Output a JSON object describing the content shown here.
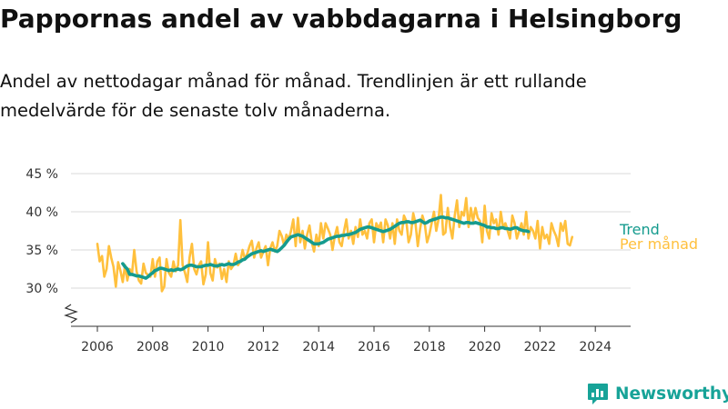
{
  "title": "Pappornas andel av vabbdagarna i Helsingborg",
  "subtitle": "Andel av nettodagar månad för månad. Trendlinjen är ett rullande medelvärde för de senaste tolv månaderna.",
  "brand": {
    "name": "Newsworthy",
    "color": "#17a398",
    "icon": "newsworthy-logo-icon"
  },
  "colors": {
    "monthly": "#ffc03d",
    "trend": "#159b8e",
    "grid": "#d9d9d9",
    "axis": "#333333"
  },
  "chart_data": {
    "type": "line",
    "title": "Pappornas andel av vabbdagarna i Helsingborg",
    "xlabel": "",
    "ylabel": "",
    "ylim": [
      25,
      45
    ],
    "y_ticks": [
      30,
      35,
      40,
      45
    ],
    "y_tick_labels": [
      "30 %",
      "35 %",
      "40 %",
      "45 %"
    ],
    "x_ticks": [
      2006,
      2008,
      2010,
      2012,
      2014,
      2016,
      2018,
      2020,
      2022,
      2024
    ],
    "x_tick_labels": [
      "2006",
      "2008",
      "2010",
      "2012",
      "2014",
      "2016",
      "2018",
      "2020",
      "2022",
      "2024"
    ],
    "xlim": [
      2005.9,
      2024.4
    ],
    "axis_break": true,
    "grid": true,
    "legend": "inline-right",
    "series": [
      {
        "name": "Per månad",
        "key": "monthly",
        "start": 2006.0,
        "step": 0.08333,
        "values": [
          35.8,
          33.5,
          34.2,
          31.5,
          32.5,
          35.5,
          34.0,
          32.8,
          30.2,
          33.4,
          32.3,
          30.8,
          33.0,
          31.0,
          32.5,
          31.8,
          35.0,
          32.2,
          31.0,
          30.6,
          33.2,
          32.0,
          31.7,
          31.5,
          33.8,
          31.5,
          33.5,
          34.0,
          29.6,
          30.2,
          33.8,
          32.0,
          31.5,
          33.5,
          32.2,
          33.0,
          38.9,
          33.0,
          32.0,
          30.8,
          34.0,
          35.8,
          32.5,
          31.8,
          33.0,
          33.5,
          30.5,
          31.8,
          36.0,
          32.0,
          31.0,
          33.8,
          32.7,
          33.2,
          31.2,
          32.5,
          30.8,
          33.5,
          32.5,
          33.0,
          34.5,
          33.0,
          33.5,
          35.0,
          33.8,
          34.5,
          35.5,
          36.2,
          34.0,
          35.2,
          36.0,
          34.0,
          34.8,
          35.5,
          33.0,
          35.2,
          36.0,
          34.8,
          35.5,
          37.5,
          36.8,
          35.6,
          37.0,
          36.4,
          37.5,
          39.0,
          35.5,
          39.2,
          36.0,
          37.5,
          35.2,
          37.0,
          38.2,
          36.0,
          34.8,
          37.0,
          35.5,
          38.5,
          36.5,
          38.5,
          37.8,
          37.0,
          35.0,
          36.8,
          38.0,
          36.0,
          35.5,
          37.5,
          39.0,
          36.5,
          37.5,
          35.8,
          38.0,
          36.7,
          39.0,
          37.0,
          37.5,
          36.5,
          38.5,
          39.0,
          36.0,
          38.5,
          37.8,
          38.6,
          36.0,
          39.0,
          38.2,
          36.5,
          38.5,
          35.8,
          39.0,
          37.5,
          37.0,
          39.5,
          38.8,
          36.0,
          37.0,
          39.8,
          38.5,
          35.5,
          37.8,
          39.5,
          38.5,
          36.0,
          37.0,
          38.5,
          40.0,
          37.5,
          39.0,
          42.2,
          37.0,
          37.3,
          40.5,
          38.0,
          36.5,
          39.5,
          41.5,
          38.0,
          40.0,
          39.5,
          41.8,
          38.0,
          40.5,
          38.8,
          40.5,
          39.2,
          38.8,
          36.0,
          40.8,
          37.5,
          36.5,
          39.8,
          38.5,
          39.0,
          37.0,
          40.0,
          38.0,
          38.5,
          37.5,
          36.5,
          39.5,
          38.5,
          36.5,
          37.5,
          38.5,
          37.0,
          40.0,
          36.5,
          38.0,
          37.5,
          36.5,
          38.8,
          35.2,
          38.0,
          36.5,
          37.0,
          35.8,
          38.5,
          37.5,
          36.8,
          35.5,
          38.5,
          37.5,
          38.8,
          35.8,
          35.6,
          36.7
        ]
      },
      {
        "name": "Trend",
        "key": "trend",
        "start": 2006.917,
        "step": 0.08333,
        "values": [
          33.2,
          32.8,
          32.5,
          31.8,
          31.8,
          31.7,
          31.6,
          31.6,
          31.5,
          31.4,
          31.3,
          31.5,
          31.8,
          32.0,
          32.3,
          32.4,
          32.6,
          32.6,
          32.5,
          32.4,
          32.3,
          32.4,
          32.3,
          32.4,
          32.5,
          32.4,
          32.5,
          32.7,
          32.9,
          33.0,
          33.0,
          32.9,
          32.8,
          32.8,
          32.8,
          32.9,
          33.0,
          33.0,
          33.1,
          33.0,
          32.9,
          32.9,
          33.0,
          33.1,
          33.0,
          33.1,
          33.2,
          33.1,
          33.1,
          33.2,
          33.4,
          33.5,
          33.7,
          33.8,
          34.1,
          34.3,
          34.5,
          34.6,
          34.7,
          34.8,
          34.9,
          34.8,
          34.9,
          35.0,
          35.1,
          35.0,
          34.9,
          34.8,
          35.0,
          35.3,
          35.6,
          36.0,
          36.4,
          36.7,
          36.8,
          36.9,
          37.0,
          36.9,
          36.8,
          36.6,
          36.4,
          36.2,
          36.0,
          35.8,
          35.8,
          35.8,
          35.9,
          36.0,
          36.2,
          36.4,
          36.5,
          36.6,
          36.7,
          36.8,
          36.8,
          36.9,
          36.9,
          37.0,
          37.0,
          37.1,
          37.2,
          37.3,
          37.5,
          37.7,
          37.8,
          37.9,
          38.0,
          38.0,
          37.9,
          37.8,
          37.7,
          37.6,
          37.5,
          37.4,
          37.5,
          37.6,
          37.7,
          37.9,
          38.1,
          38.3,
          38.5,
          38.6,
          38.6,
          38.7,
          38.7,
          38.6,
          38.6,
          38.7,
          38.8,
          38.9,
          38.7,
          38.5,
          38.6,
          38.8,
          38.9,
          39.0,
          39.1,
          39.2,
          39.3,
          39.3,
          39.2,
          39.2,
          39.1,
          39.0,
          38.9,
          38.8,
          38.7,
          38.6,
          38.5,
          38.6,
          38.6,
          38.5,
          38.5,
          38.6,
          38.5,
          38.4,
          38.3,
          38.2,
          38.0,
          38.0,
          37.9,
          37.9,
          37.8,
          37.8,
          37.9,
          37.9,
          37.8,
          37.8,
          37.7,
          37.8,
          37.9,
          37.9,
          37.7,
          37.6,
          37.5,
          37.5,
          37.4
        ]
      }
    ]
  }
}
